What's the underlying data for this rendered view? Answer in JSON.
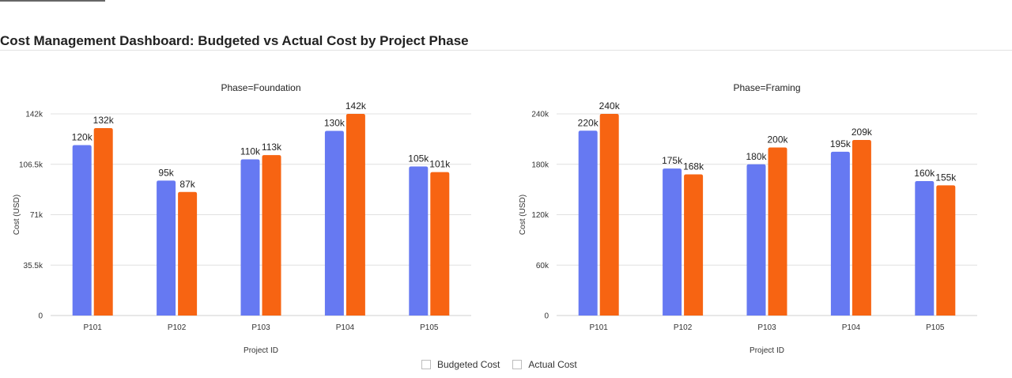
{
  "dashboard": {
    "title": "Cost Management Dashboard: Budgeted vs Actual Cost by Project Phase"
  },
  "legend": {
    "items": [
      "Budgeted Cost",
      "Actual Cost"
    ]
  },
  "colors": {
    "budgeted": "#6679F2",
    "actual": "#F76412",
    "grid": "#e0e0e0"
  },
  "chart_data": [
    {
      "type": "bar",
      "title": "Phase=Foundation",
      "xlabel": "Project ID",
      "ylabel": "Cost (USD)",
      "categories": [
        "P101",
        "P102",
        "P103",
        "P104",
        "P105"
      ],
      "ylim": [
        0,
        142000
      ],
      "yticks": [
        0,
        35500,
        71000,
        106500,
        142000
      ],
      "yticklabels": [
        "0",
        "35.5k",
        "71k",
        "106.5k",
        "142k"
      ],
      "grid": true,
      "legend": "bottom-center",
      "series": [
        {
          "name": "Budgeted Cost",
          "values": [
            120000,
            95000,
            110000,
            130000,
            105000
          ],
          "labels": [
            "120k",
            "95k",
            "110k",
            "130k",
            "105k"
          ]
        },
        {
          "name": "Actual Cost",
          "values": [
            132000,
            87000,
            113000,
            142000,
            101000
          ],
          "labels": [
            "132k",
            "87k",
            "113k",
            "142k",
            "101k"
          ]
        }
      ]
    },
    {
      "type": "bar",
      "title": "Phase=Framing",
      "xlabel": "Project ID",
      "ylabel": "Cost (USD)",
      "categories": [
        "P101",
        "P102",
        "P103",
        "P104",
        "P105"
      ],
      "ylim": [
        0,
        240000
      ],
      "yticks": [
        0,
        60000,
        120000,
        180000,
        240000
      ],
      "yticklabels": [
        "0",
        "60k",
        "120k",
        "180k",
        "240k"
      ],
      "grid": true,
      "legend": "bottom-center",
      "series": [
        {
          "name": "Budgeted Cost",
          "values": [
            220000,
            175000,
            180000,
            195000,
            160000
          ],
          "labels": [
            "220k",
            "175k",
            "180k",
            "195k",
            "160k"
          ]
        },
        {
          "name": "Actual Cost",
          "values": [
            240000,
            168000,
            200000,
            209000,
            155000
          ],
          "labels": [
            "240k",
            "168k",
            "200k",
            "209k",
            "155k"
          ]
        }
      ]
    }
  ]
}
